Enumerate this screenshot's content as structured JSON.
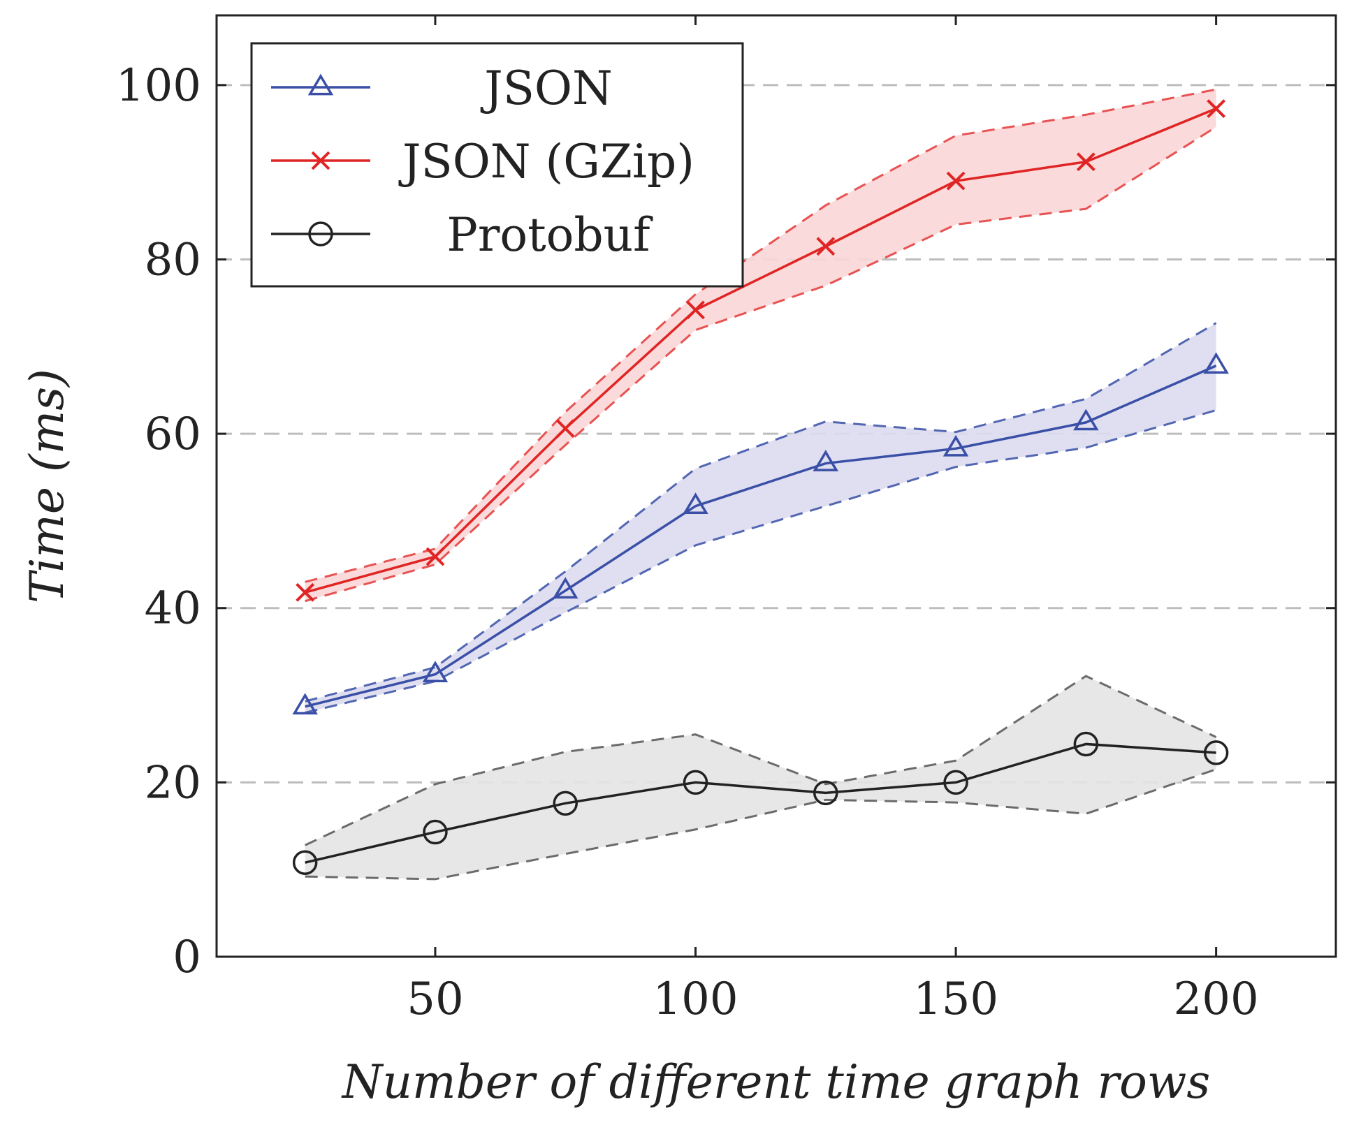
{
  "chart_data": {
    "type": "line",
    "title": "",
    "xlabel": "Number of different time graph rows",
    "ylabel": "Time (ms)",
    "xlim": [
      8,
      223
    ],
    "ylim": [
      0,
      108
    ],
    "x_ticks": [
      50,
      100,
      150,
      200
    ],
    "y_ticks": [
      0,
      20,
      40,
      60,
      80,
      100
    ],
    "grid": "horizontal dashed",
    "legend_position": "top-left",
    "x": [
      25,
      50,
      75,
      100,
      125,
      150,
      175,
      200
    ],
    "series": [
      {
        "name": "JSON",
        "marker": "triangle",
        "color": "#3a4fa6",
        "band_color": "#dcdcf0",
        "values": [
          28.7,
          32.4,
          42.0,
          51.7,
          56.6,
          58.3,
          61.3,
          67.8
        ],
        "upper": [
          29.3,
          33.2,
          44.2,
          56.0,
          61.4,
          60.2,
          64.0,
          72.7
        ],
        "lower": [
          28.0,
          31.6,
          39.5,
          47.2,
          51.7,
          56.2,
          58.4,
          62.7
        ]
      },
      {
        "name": "JSON (GZip)",
        "marker": "cross",
        "color": "#e02424",
        "band_color": "#f9d6d6",
        "values": [
          41.8,
          45.9,
          60.6,
          74.2,
          81.5,
          89.0,
          91.2,
          97.3
        ],
        "upper": [
          43.0,
          46.8,
          62.5,
          76.0,
          86.2,
          94.2,
          96.6,
          99.5
        ],
        "lower": [
          40.8,
          45.0,
          58.7,
          71.9,
          77.0,
          84.0,
          85.8,
          95.2
        ]
      },
      {
        "name": "Protobuf",
        "marker": "circle",
        "color": "#222222",
        "band_color": "#e4e4e4",
        "values": [
          10.8,
          14.3,
          17.6,
          20.0,
          18.8,
          20.0,
          24.4,
          23.4
        ],
        "upper": [
          12.8,
          19.8,
          23.5,
          25.5,
          19.8,
          22.5,
          32.2,
          25.2
        ],
        "lower": [
          9.2,
          8.9,
          11.8,
          14.6,
          18.0,
          17.7,
          16.4,
          21.5
        ]
      }
    ]
  }
}
